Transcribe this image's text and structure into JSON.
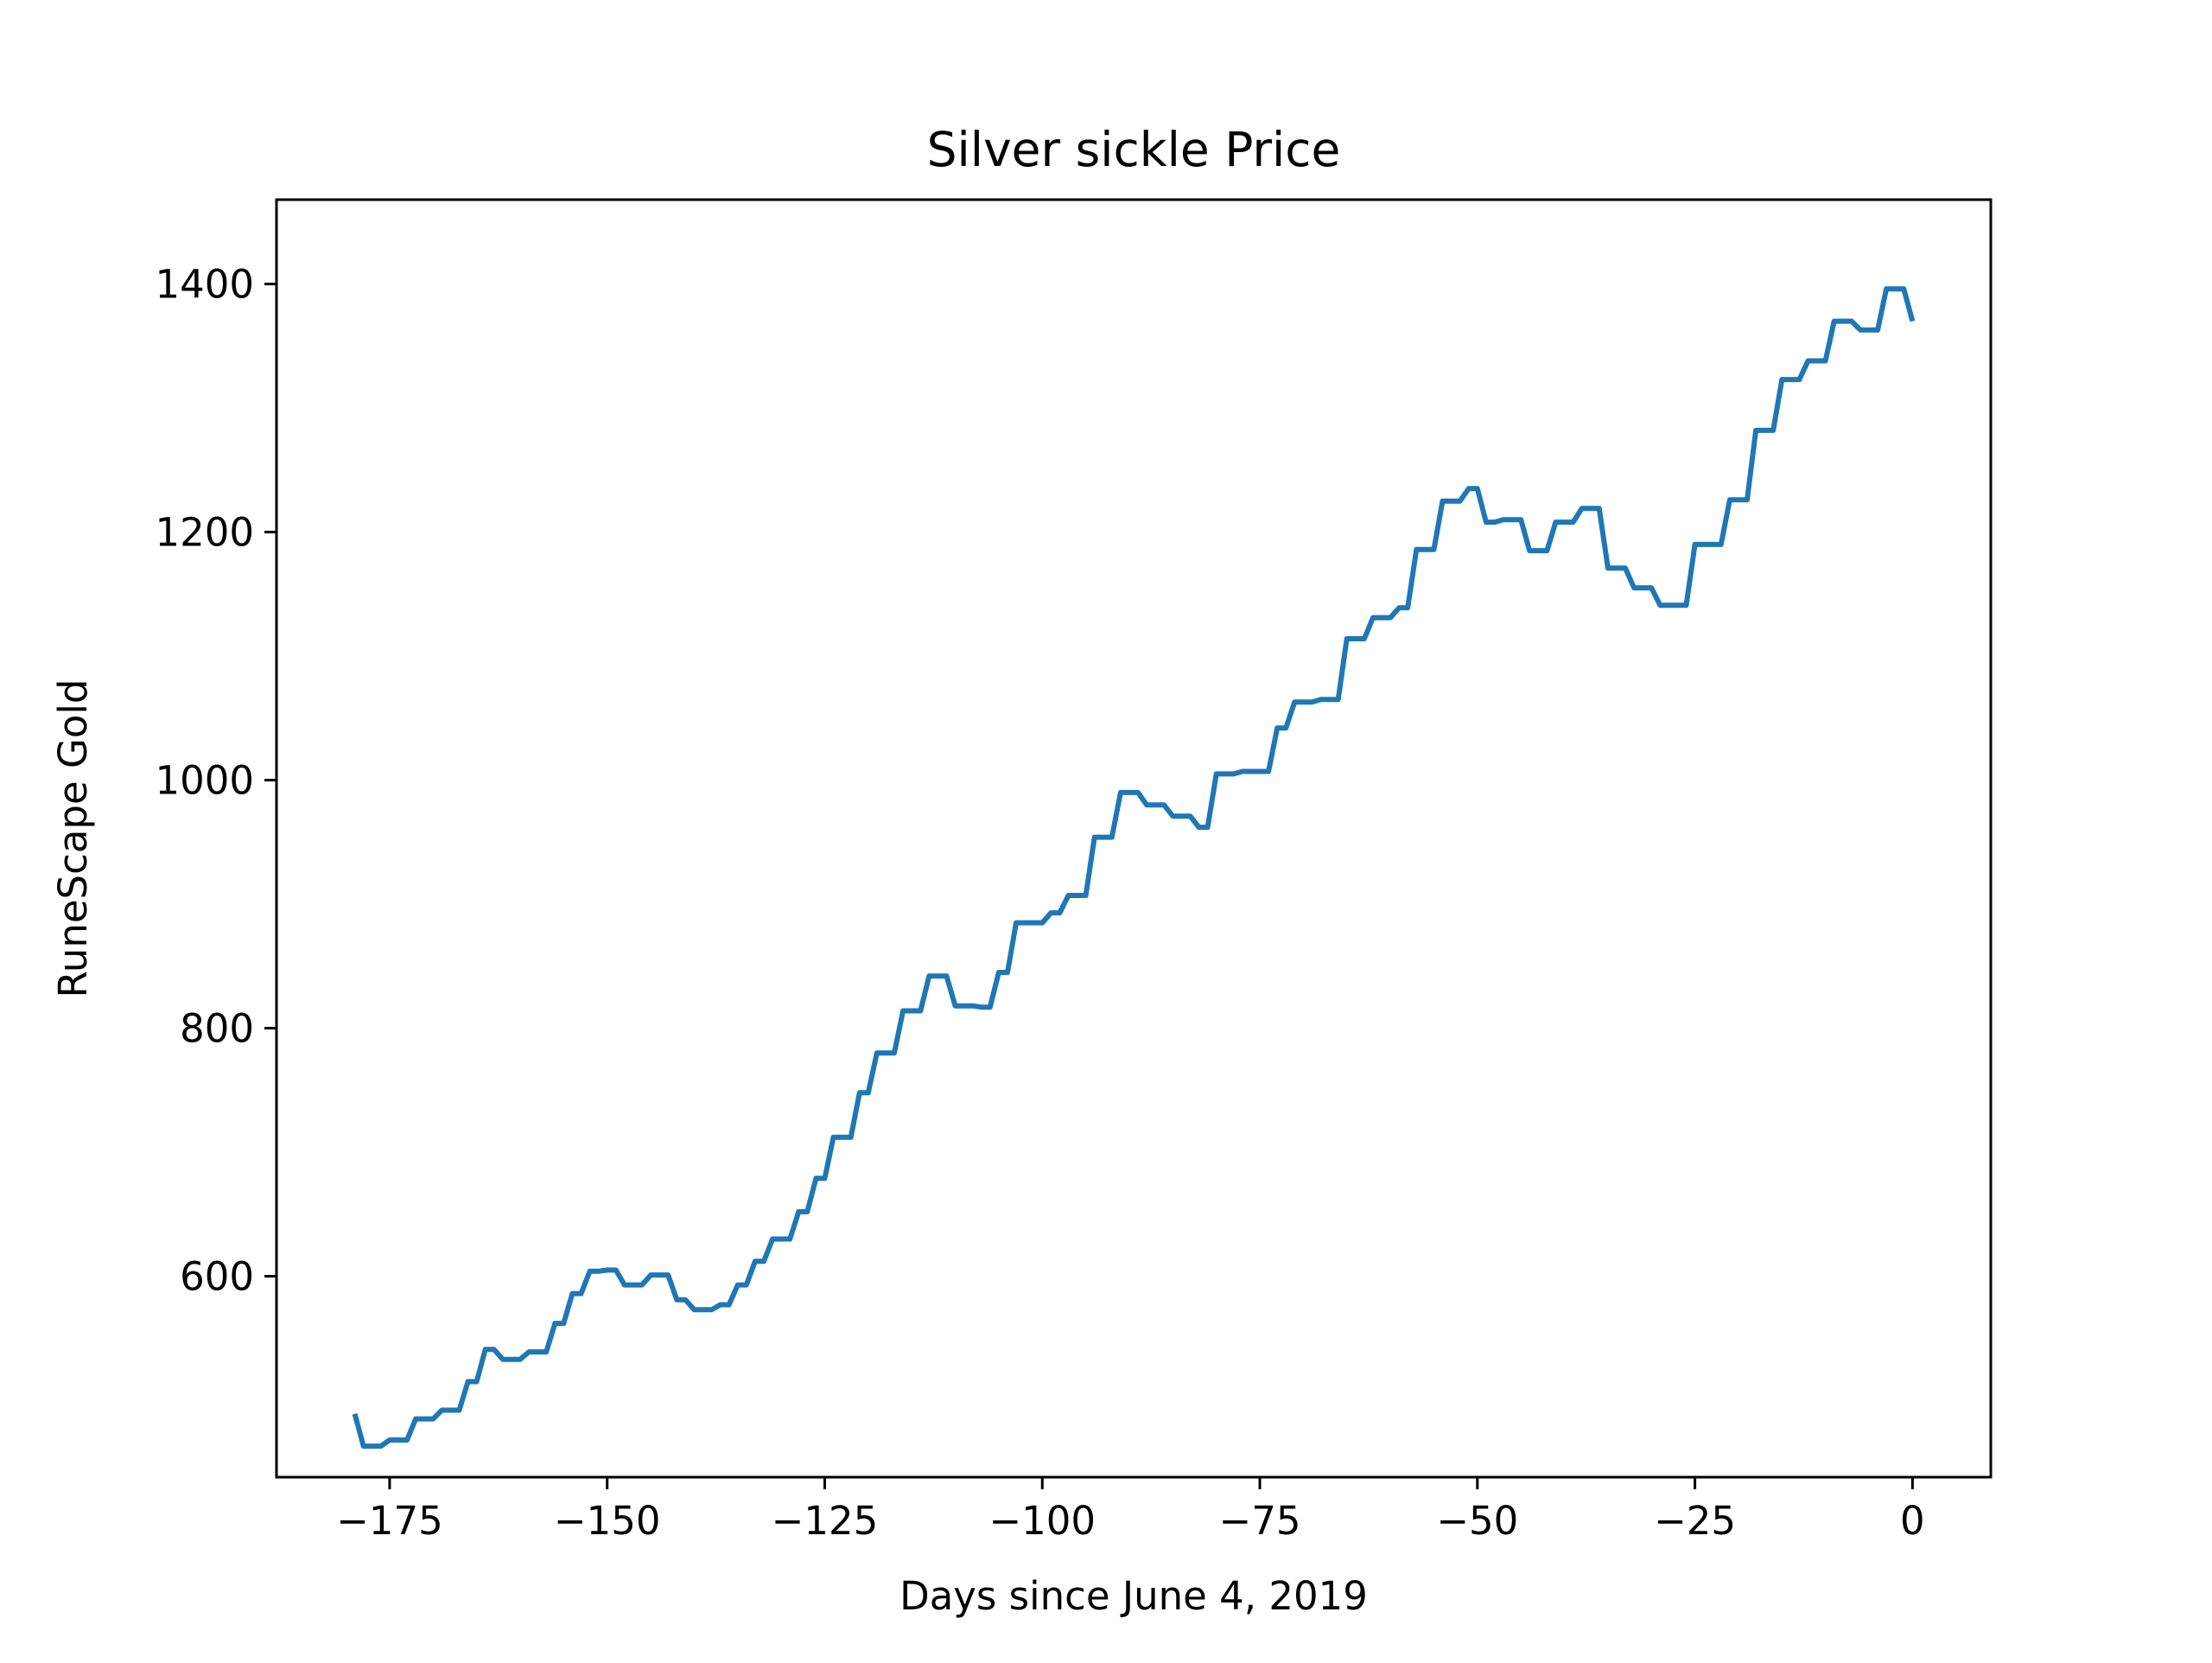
{
  "chart_data": {
    "type": "line",
    "title": "Silver sickle Price",
    "xlabel": "Days since June 4, 2019",
    "ylabel": "RuneScape Gold",
    "xlim": [
      -188,
      9
    ],
    "ylim": [
      438,
      1468
    ],
    "x_ticks": [
      {
        "value": -175,
        "label": "−175"
      },
      {
        "value": -150,
        "label": "−150"
      },
      {
        "value": -125,
        "label": "−125"
      },
      {
        "value": -100,
        "label": "−100"
      },
      {
        "value": -75,
        "label": "−75"
      },
      {
        "value": -50,
        "label": "−50"
      },
      {
        "value": -25,
        "label": "−25"
      },
      {
        "value": 0,
        "label": "0"
      }
    ],
    "y_ticks": [
      {
        "value": 600,
        "label": "600"
      },
      {
        "value": 800,
        "label": "800"
      },
      {
        "value": 1000,
        "label": "1000"
      },
      {
        "value": 1200,
        "label": "1200"
      },
      {
        "value": 1400,
        "label": "1400"
      }
    ],
    "grid": false,
    "line_color": "#1f77b4",
    "series": [
      {
        "x": [
          -179,
          -178,
          -177,
          -176,
          -175,
          -174,
          -173,
          -172,
          -171,
          -170,
          -169,
          -168,
          -167,
          -166,
          -165,
          -164,
          -163,
          -162,
          -161,
          -160,
          -159,
          -158,
          -157,
          -156,
          -155,
          -154,
          -153,
          -152,
          -151,
          -150,
          -149,
          -148,
          -147,
          -146,
          -145,
          -144,
          -143,
          -142,
          -141,
          -140,
          -139,
          -138,
          -137,
          -136,
          -135,
          -134,
          -133,
          -132,
          -131,
          -130,
          -129,
          -128,
          -127,
          -126,
          -125,
          -124,
          -123,
          -122,
          -121,
          -120,
          -119,
          -118,
          -117,
          -116,
          -115,
          -114,
          -113,
          -112,
          -111,
          -110,
          -109,
          -108,
          -107,
          -106,
          -105,
          -104,
          -103,
          -102,
          -101,
          -100,
          -99,
          -98,
          -97,
          -96,
          -95,
          -94,
          -93,
          -92,
          -91,
          -90,
          -89,
          -88,
          -87,
          -86,
          -85,
          -84,
          -83,
          -82,
          -81,
          -80,
          -79,
          -78,
          -77,
          -76,
          -75,
          -74,
          -73,
          -72,
          -71,
          -70,
          -69,
          -68,
          -67,
          -66,
          -65,
          -64,
          -63,
          -62,
          -61,
          -60,
          -59,
          -58,
          -57,
          -56,
          -55,
          -54,
          -53,
          -52,
          -51,
          -50,
          -49,
          -48,
          -47,
          -46,
          -45,
          -44,
          -43,
          -42,
          -41,
          -40,
          -39,
          -38,
          -37,
          -36,
          -35,
          -34,
          -33,
          -32,
          -31,
          -30,
          -29,
          -28,
          -27,
          -26,
          -25,
          -24,
          -23,
          -22,
          -21,
          -20,
          -19,
          -18,
          -17,
          -16,
          -15,
          -14,
          -13,
          -12,
          -11,
          -10,
          -9,
          -8,
          -7,
          -6,
          -5,
          -4,
          -3,
          -2,
          -1,
          0
        ],
        "y": [
          489,
          463,
          463,
          463,
          468,
          468,
          468,
          485,
          485,
          485,
          492,
          492,
          492,
          515,
          515,
          541,
          541,
          533,
          533,
          533,
          539,
          539,
          539,
          562,
          562,
          586,
          586,
          604,
          604,
          605,
          605,
          593,
          593,
          593,
          601,
          601,
          601,
          581,
          581,
          573,
          573,
          573,
          577,
          577,
          593,
          593,
          612,
          612,
          630,
          630,
          630,
          652,
          652,
          679,
          679,
          712,
          712,
          712,
          748,
          748,
          780,
          780,
          780,
          814,
          814,
          814,
          842,
          842,
          842,
          818,
          818,
          818,
          817,
          817,
          845,
          845,
          885,
          885,
          885,
          885,
          893,
          893,
          907,
          907,
          907,
          954,
          954,
          954,
          990,
          990,
          990,
          980,
          980,
          980,
          971,
          971,
          971,
          962,
          962,
          1005,
          1005,
          1005,
          1007,
          1007,
          1007,
          1007,
          1042,
          1042,
          1063,
          1063,
          1063,
          1065,
          1065,
          1065,
          1114,
          1114,
          1114,
          1131,
          1131,
          1131,
          1139,
          1139,
          1186,
          1186,
          1186,
          1225,
          1225,
          1225,
          1235,
          1235,
          1208,
          1208,
          1210,
          1210,
          1210,
          1185,
          1185,
          1185,
          1208,
          1208,
          1208,
          1219,
          1219,
          1219,
          1171,
          1171,
          1171,
          1155,
          1155,
          1155,
          1141,
          1141,
          1141,
          1141,
          1190,
          1190,
          1190,
          1190,
          1226,
          1226,
          1226,
          1282,
          1282,
          1282,
          1323,
          1323,
          1323,
          1338,
          1338,
          1338,
          1370,
          1370,
          1370,
          1363,
          1363,
          1363,
          1396,
          1396,
          1396,
          1370
        ]
      }
    ]
  }
}
